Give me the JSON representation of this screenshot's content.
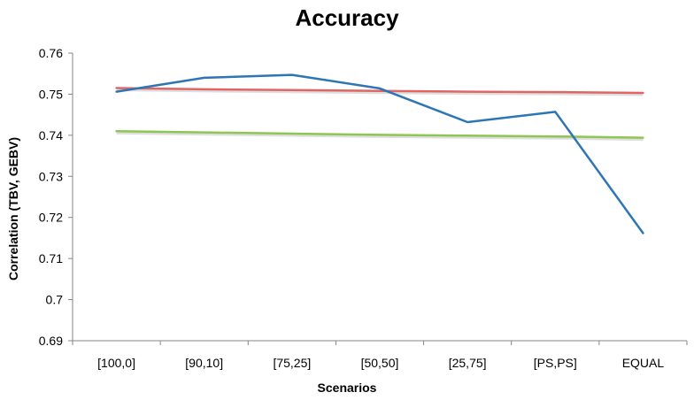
{
  "chart_data": {
    "type": "line",
    "title": "Accuracy",
    "xlabel": "Scenarios",
    "ylabel": "Correlation (TBV, GEBV)",
    "categories": [
      "[100,0]",
      "[90,10]",
      "[75,25]",
      "[50,50]",
      "[25,75]",
      "[PS,PS]",
      "EQUAL"
    ],
    "ylim": [
      0.69,
      0.76
    ],
    "yticks": [
      "0.76",
      "0.75",
      "0.74",
      "0.73",
      "0.72",
      "0.71",
      "0.7",
      "0.69"
    ],
    "grid": false,
    "legend": "none",
    "series": [
      {
        "color": "#2e75b6",
        "values": [
          0.7506,
          0.754,
          0.7547,
          0.7514,
          0.7432,
          0.7457,
          0.7162
        ]
      },
      {
        "color": "#e06666",
        "shadow": true,
        "values": [
          0.7515,
          0.7512,
          0.751,
          0.7508,
          0.7506,
          0.7505,
          0.7503
        ]
      },
      {
        "color": "#8fc653",
        "shadow": true,
        "values": [
          0.741,
          0.7407,
          0.7404,
          0.7401,
          0.7399,
          0.7397,
          0.7394
        ]
      }
    ]
  }
}
